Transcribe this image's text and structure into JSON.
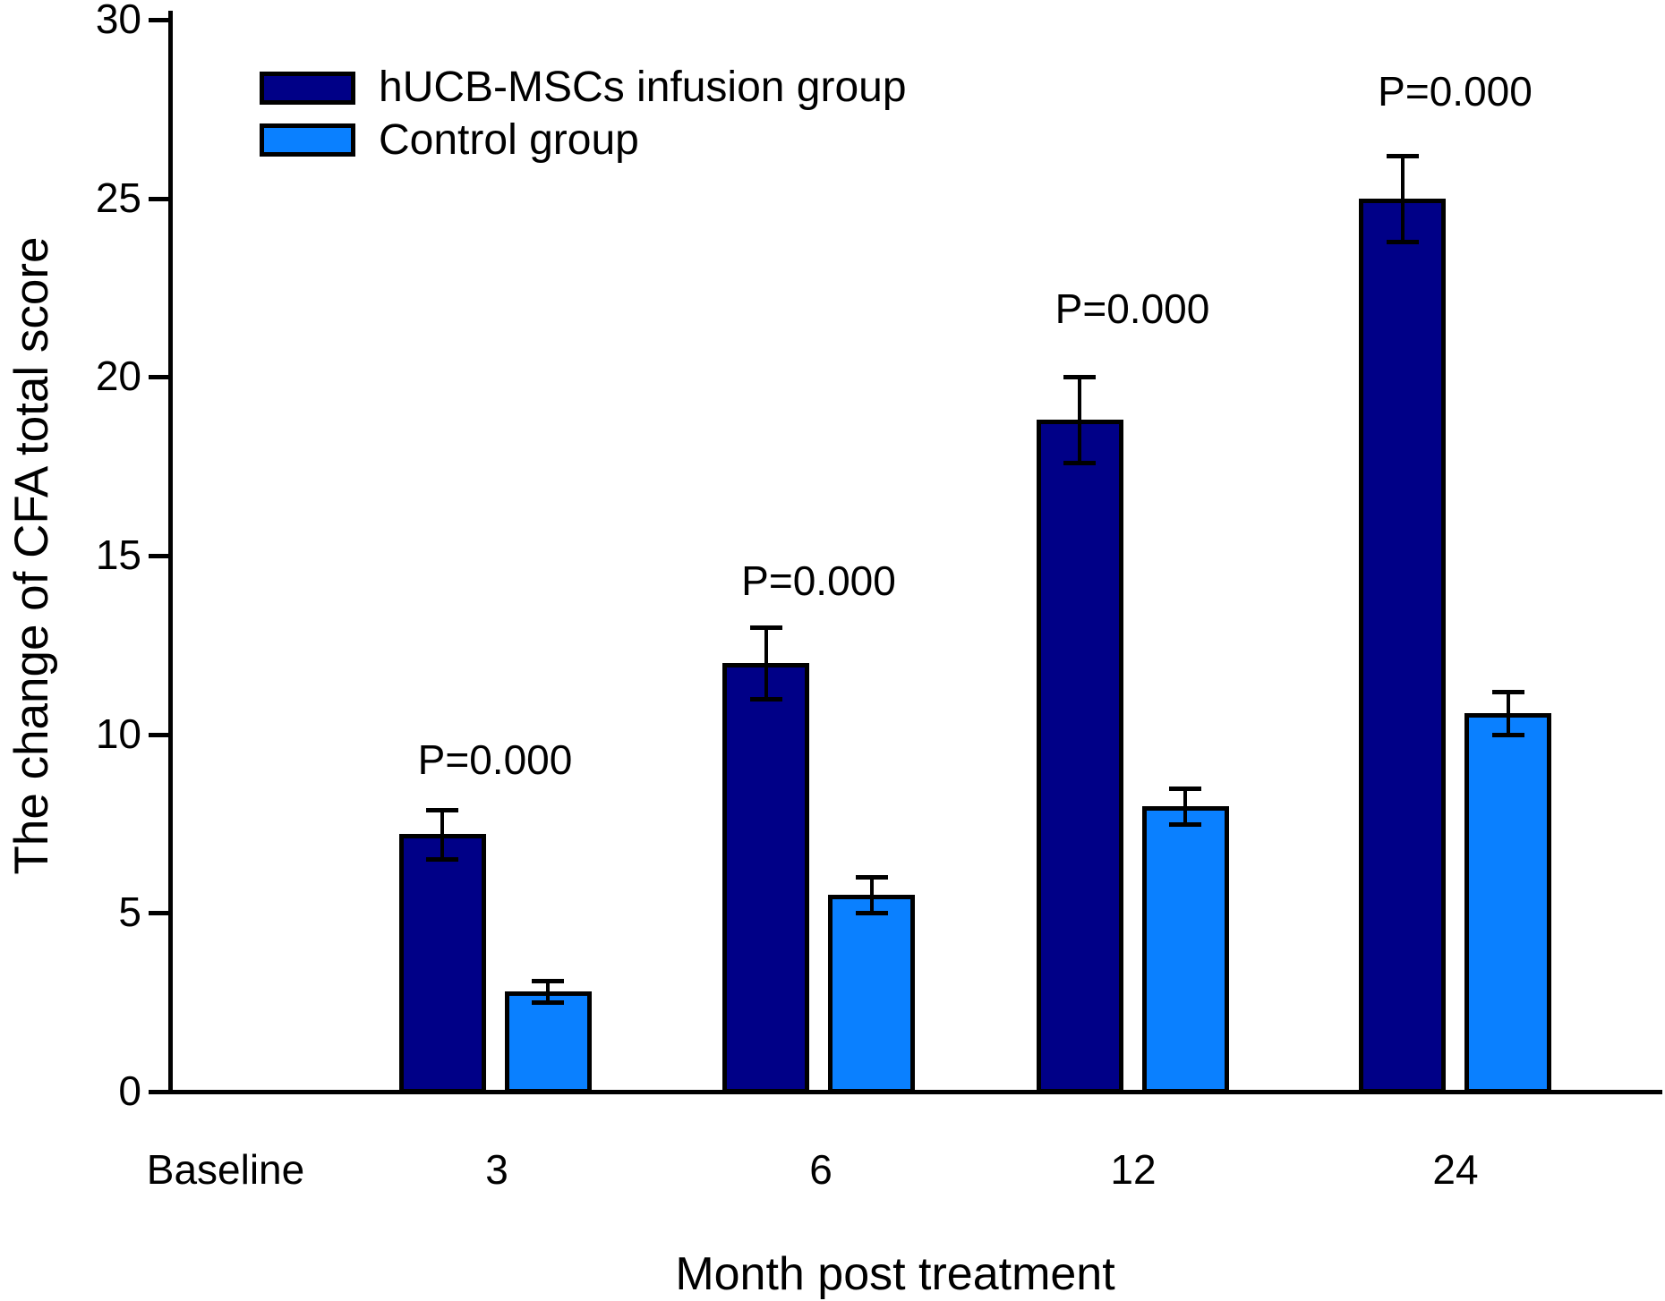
{
  "figure": {
    "background": "#ffffff"
  },
  "chart_data": {
    "type": "bar",
    "title": "",
    "xlabel": "Month post treatment",
    "ylabel": "The change of CFA total score",
    "categories": [
      "Baseline",
      "3",
      "6",
      "12",
      "24"
    ],
    "series": [
      {
        "name": "hUCB-MSCs infusion group",
        "color": "#000087",
        "values": [
          null,
          7.2,
          12.0,
          18.8,
          25.0
        ],
        "errors": [
          null,
          0.7,
          1.0,
          1.2,
          1.2
        ]
      },
      {
        "name": "Control group",
        "color": "#0a80ff",
        "values": [
          null,
          2.8,
          5.5,
          8.0,
          10.6
        ],
        "errors": [
          null,
          0.3,
          0.5,
          0.5,
          0.6
        ]
      }
    ],
    "error_bars": true,
    "p_annotations": [
      {
        "category": "3",
        "label": "P=0.000",
        "y": 9.3
      },
      {
        "category": "6",
        "label": "P=0.000",
        "y": 14.3
      },
      {
        "category": "12",
        "label": "P=0.000",
        "y": 21.9
      },
      {
        "category": "24",
        "label": "P=0.000",
        "y": 28.0
      }
    ],
    "ylim": [
      0,
      30
    ],
    "yticks": [
      0,
      5,
      10,
      15,
      20,
      25,
      30
    ],
    "grid": false,
    "legend_position": "top-left-inside",
    "bar_edge_color": "#000000"
  }
}
